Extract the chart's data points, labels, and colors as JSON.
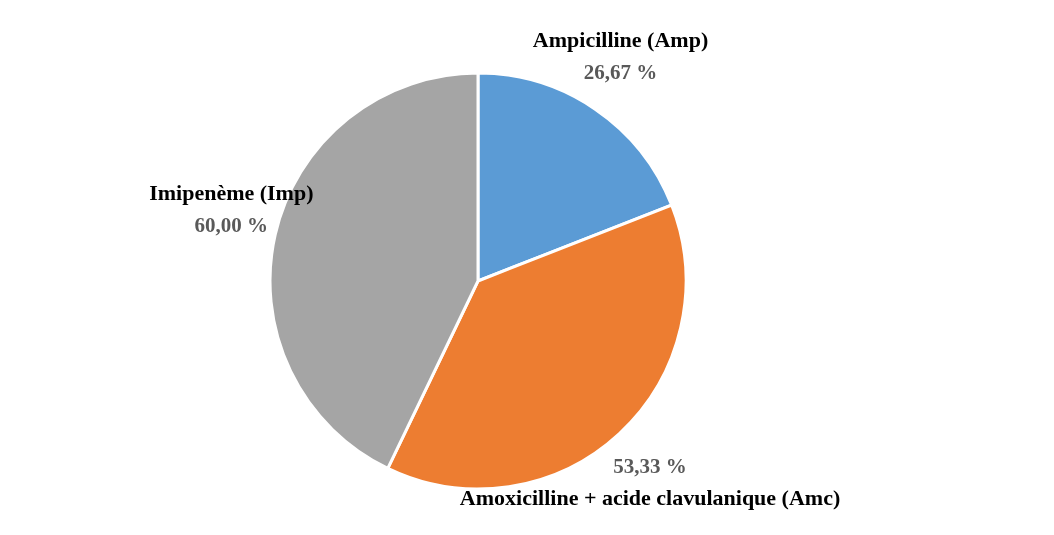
{
  "chart_data": {
    "type": "pie",
    "categories": [
      "Ampicilline (Amp)",
      "Amoxicilline + acide clavulanique (Amc)",
      "Imipenème (Imp)"
    ],
    "values": [
      26.67,
      53.33,
      60.0
    ],
    "value_labels": [
      "26,67 %",
      "53,33 %",
      "60,00 %"
    ],
    "colors": [
      "#5b9bd5",
      "#ed7d31",
      "#a5a5a5"
    ],
    "legend": false
  }
}
